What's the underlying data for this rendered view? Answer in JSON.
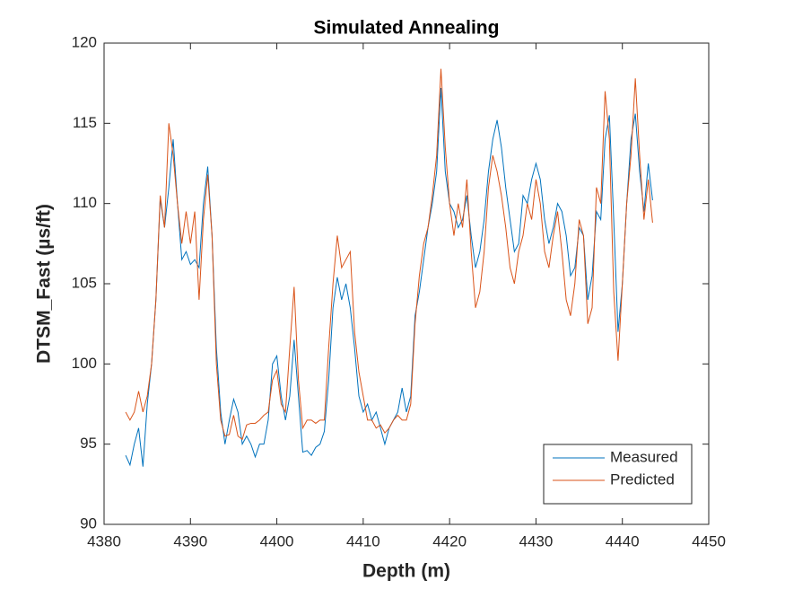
{
  "chart_data": {
    "type": "line",
    "title": "Simulated Annealing",
    "x_label": "Depth (m)",
    "y_label": "DTSM_Fast (µs/ft)",
    "xlim": [
      4380,
      4450
    ],
    "xticks": [
      4380,
      4390,
      4400,
      4410,
      4420,
      4430,
      4440,
      4450
    ],
    "ylim": [
      90,
      120
    ],
    "yticks": [
      90,
      95,
      100,
      105,
      110,
      115,
      120
    ],
    "grid": false,
    "legend": "lower-right",
    "x": [
      4382.5,
      4383,
      4383.5,
      4384,
      4384.5,
      4385,
      4385.5,
      4386,
      4386.5,
      4387,
      4387.5,
      4388,
      4388.5,
      4389,
      4389.5,
      4390,
      4390.5,
      4391,
      4391.5,
      4392,
      4392.5,
      4393,
      4393.5,
      4394,
      4394.5,
      4395,
      4395.5,
      4396,
      4396.5,
      4397,
      4397.5,
      4398,
      4398.5,
      4399,
      4399.5,
      4400,
      4400.5,
      4401,
      4401.5,
      4402,
      4402.5,
      4403,
      4403.5,
      4404,
      4404.5,
      4405,
      4405.5,
      4406,
      4406.5,
      4407,
      4407.5,
      4408,
      4408.5,
      4409,
      4409.5,
      4410,
      4410.5,
      4411,
      4411.5,
      4412,
      4412.5,
      4413,
      4413.5,
      4414,
      4414.5,
      4415,
      4415.5,
      4416,
      4416.5,
      4417,
      4417.5,
      4418,
      4418.5,
      4419,
      4419.5,
      4420,
      4420.5,
      4421,
      4421.5,
      4422,
      4422.5,
      4423,
      4423.5,
      4424,
      4424.5,
      4425,
      4425.5,
      4426,
      4426.5,
      4427,
      4427.5,
      4428,
      4428.5,
      4429,
      4429.5,
      4430,
      4430.5,
      4431,
      4431.5,
      4432,
      4432.5,
      4433,
      4433.5,
      4434,
      4434.5,
      4435,
      4435.5,
      4436,
      4436.5,
      4437,
      4437.5,
      4438,
      4438.5,
      4439,
      4439.5,
      4440,
      4440.5,
      4441,
      4441.5,
      4442,
      4442.5,
      4443,
      4443.5
    ],
    "series": [
      {
        "name": "Measured",
        "color": "#0072BD",
        "values": [
          94.3,
          93.7,
          95,
          96,
          93.6,
          97.5,
          100,
          104,
          110.3,
          108.5,
          111,
          114,
          110,
          106.5,
          107,
          106.2,
          106.5,
          106,
          110,
          112.3,
          108,
          101,
          97,
          95,
          96.5,
          97.8,
          97,
          95,
          95.5,
          95,
          94.2,
          95,
          95,
          96.5,
          100,
          100.5,
          98,
          96.5,
          98,
          101.5,
          98,
          94.5,
          94.6,
          94.3,
          94.8,
          95,
          95.8,
          99,
          103.5,
          105.4,
          104,
          105,
          103.5,
          101,
          98,
          97,
          97.5,
          96.5,
          97,
          96,
          95,
          96,
          96.5,
          97,
          98.5,
          97,
          98,
          103,
          104.5,
          106.5,
          108.5,
          110,
          112,
          117.2,
          112,
          110,
          109.5,
          108.5,
          109,
          110.5,
          108,
          106,
          107,
          109,
          112,
          114,
          115.2,
          113.5,
          111,
          109,
          107,
          107.5,
          110.5,
          110,
          111.5,
          112.5,
          111.5,
          109,
          107.5,
          108.5,
          110,
          109.5,
          108,
          105.5,
          106,
          108.5,
          108,
          104,
          105.5,
          109.5,
          109,
          114,
          115.5,
          109,
          102,
          105,
          110,
          114,
          115.6,
          112,
          109.5,
          112.5,
          110.2
        ]
      },
      {
        "name": "Predicted",
        "color": "#D95319",
        "values": [
          97,
          96.5,
          97,
          98.3,
          97,
          98,
          100,
          104,
          110.5,
          108.5,
          115,
          113,
          110,
          107.5,
          109.5,
          107.5,
          109.5,
          104,
          109,
          111.8,
          108,
          100,
          96.5,
          95.5,
          95.6,
          96.8,
          95.5,
          95.3,
          96.2,
          96.3,
          96.3,
          96.5,
          96.8,
          97,
          99,
          99.6,
          97.5,
          97,
          101,
          104.8,
          99,
          96,
          96.5,
          96.5,
          96.3,
          96.5,
          96.5,
          101,
          105,
          108,
          106,
          106.5,
          107,
          102,
          99.5,
          98,
          96.5,
          96.5,
          96,
          96.2,
          95.7,
          96,
          96.5,
          96.8,
          96.5,
          96.5,
          97.5,
          102.5,
          105.5,
          107.5,
          108.5,
          110.5,
          113,
          118.4,
          113.5,
          110,
          108,
          110,
          108.5,
          111.5,
          107,
          103.5,
          104.5,
          107,
          111,
          113,
          112,
          110.5,
          108.5,
          106,
          105,
          107,
          108,
          110,
          109,
          111.5,
          110,
          107,
          106,
          108,
          109.5,
          107,
          104,
          103,
          105,
          109,
          108,
          102.5,
          103.5,
          111,
          110,
          117,
          114,
          104.5,
          100.2,
          105,
          110,
          113,
          117.8,
          113,
          109,
          111.5,
          108.8
        ]
      }
    ]
  }
}
